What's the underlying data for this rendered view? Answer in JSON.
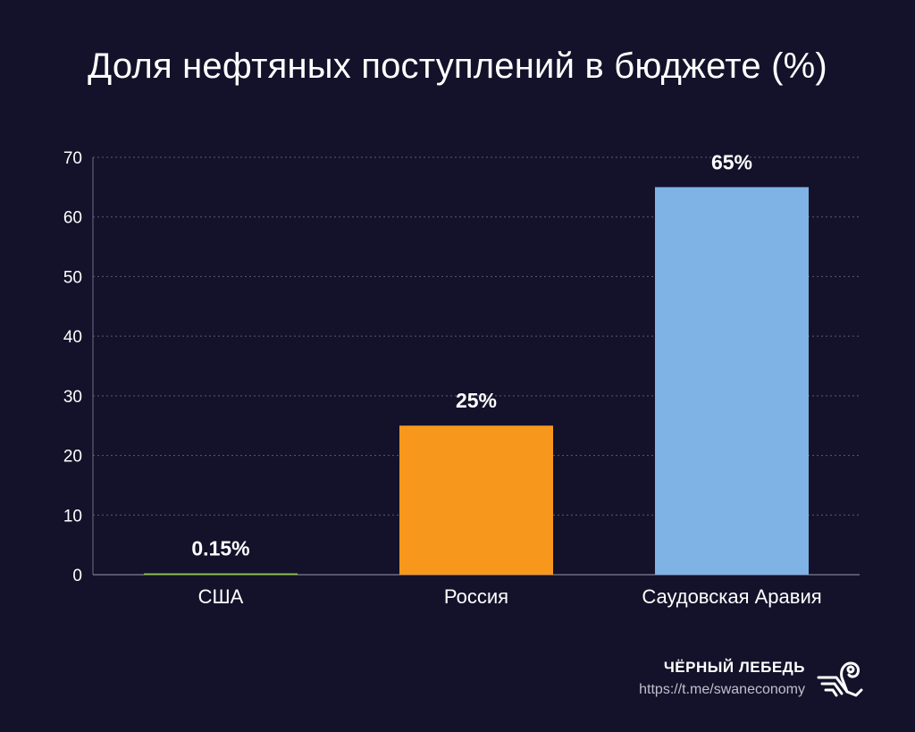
{
  "title": "Доля нефтяных поступлений в бюджете (%)",
  "chart_data": {
    "type": "bar",
    "title": "Доля нефтяных поступлений в бюджете (%)",
    "categories": [
      "США",
      "Россия",
      "Саудовская Аравия"
    ],
    "values": [
      0.15,
      25,
      65
    ],
    "data_labels": [
      "0.15%",
      "25%",
      "65%"
    ],
    "colors": [
      "#8cc63f",
      "#f7981d",
      "#7fb2e5"
    ],
    "ylim": [
      0,
      70
    ],
    "yticks": [
      0,
      10,
      20,
      30,
      40,
      50,
      60,
      70
    ],
    "ytick_labels": [
      "0",
      "10",
      "20",
      "30",
      "40",
      "50",
      "60",
      "70"
    ],
    "xlabel": "",
    "ylabel": "",
    "grid": true,
    "grid_style": "dotted",
    "legend": "none"
  },
  "brand": {
    "name": "ЧЁРНЫЙ ЛЕБЕДЬ",
    "url": "https://t.me/swaneconomy",
    "logo_icon": "swan-logo-icon"
  },
  "colors": {
    "background": "#13122a",
    "grid": "#5b5a73",
    "axis": "#6e6d85",
    "text": "#ffffff"
  }
}
